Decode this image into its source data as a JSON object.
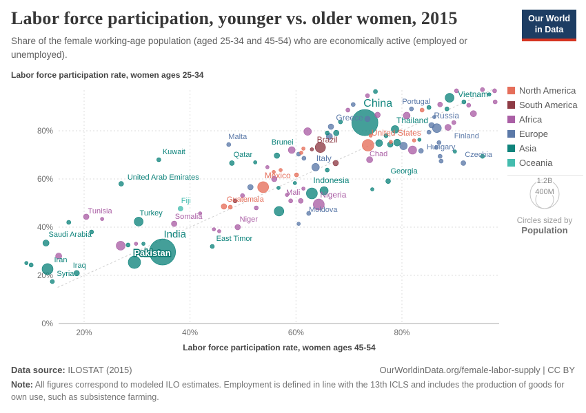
{
  "header": {
    "title": "Labor force participation, younger vs. older women, 2015",
    "subtitle": "Share of the female working-age population (aged 25-34 and 45-54) who are economically active (employed or unemployed).",
    "logo": {
      "line1": "Our World",
      "line2": "in Data"
    }
  },
  "chart_data": {
    "type": "scatter",
    "title": "Labor force participation, younger vs. older women, 2015",
    "xlabel": "Labor force participation rate, women ages 45-54",
    "ylabel": "Labor force participation rate, women ages 25-34",
    "xlim": [
      15,
      98
    ],
    "ylim": [
      0,
      97
    ],
    "x_ticks": [
      20,
      40,
      60,
      80
    ],
    "y_ticks": [
      0,
      20,
      40,
      60,
      80
    ],
    "tick_suffix": "%",
    "grid": true,
    "diagonal_line": true,
    "legend_position": "right",
    "continent_colors": {
      "North America": "#e56e5a",
      "South America": "#8e3b45",
      "Africa": "#aa5fa5",
      "Europe": "#5b79a8",
      "Asia": "#0f847c",
      "Oceania": "#44bcae"
    },
    "legend": [
      "North America",
      "South America",
      "Africa",
      "Europe",
      "Asia",
      "Oceania"
    ],
    "size_legend": {
      "outer_label": "1.2B",
      "inner_label": "400M",
      "caption": "Circles sized by",
      "caption_bold": "Population"
    },
    "points": [
      {
        "n": "India",
        "x": 34.8,
        "y": 29.7,
        "r": 19,
        "c": "Asia",
        "lx": 18,
        "ly": -21,
        "ls": 15
      },
      {
        "n": "Pakistan",
        "x": 29.5,
        "y": 25.4,
        "r": 9,
        "c": "Asia",
        "lx": 26,
        "ly": -9,
        "ls": 13,
        "halo": true
      },
      {
        "n": "China",
        "x": 73,
        "y": 83.4,
        "r": 19,
        "c": "Asia",
        "lx": 19,
        "ly": -23,
        "ls": 16
      },
      {
        "n": "United States",
        "x": 73.6,
        "y": 74,
        "r": 8.5,
        "c": "North America",
        "lx": 41,
        "ly": -14,
        "ls": 12
      },
      {
        "n": "Brazil",
        "x": 64.6,
        "y": 73.1,
        "r": 7.5,
        "c": "South America",
        "lx": 10,
        "ly": -7,
        "ls": 12
      },
      {
        "n": "Mexico",
        "x": 53.8,
        "y": 56.6,
        "r": 8,
        "c": "North America",
        "lx": 21,
        "ly": -13,
        "ls": 12
      },
      {
        "n": "Indonesia",
        "x": 63,
        "y": 54,
        "r": 8,
        "c": "Asia",
        "lx": 28,
        "ly": -15,
        "ls": 12
      },
      {
        "n": "Nigeria",
        "x": 64.3,
        "y": 49.4,
        "r": 8,
        "c": "Africa",
        "lx": 21,
        "ly": -10,
        "ls": 12
      },
      {
        "n": "Iran",
        "x": 13.1,
        "y": 22.6,
        "r": 8,
        "c": "Asia",
        "lx": 19,
        "ly": -10,
        "ls": 11
      },
      {
        "n": "Turkey",
        "x": 30.3,
        "y": 42.3,
        "r": 6.5,
        "c": "Asia",
        "lx": 18,
        "ly": -9,
        "ls": 11
      },
      {
        "n": "Vietnam",
        "x": 89,
        "y": 93.7,
        "r": 6.5,
        "c": "Asia",
        "lx": 34,
        "ly": -1,
        "ls": 12
      },
      {
        "n": "Russia",
        "x": 86.6,
        "y": 81.1,
        "r": 6.5,
        "c": "Europe",
        "lx": 14,
        "ly": -14,
        "ls": 12
      },
      {
        "n": "Thailand",
        "x": 78.7,
        "y": 80.6,
        "r": 5.5,
        "c": "Asia",
        "lx": 25,
        "ly": -9,
        "ls": 12
      },
      {
        "n": "Italy",
        "x": 63.7,
        "y": 64.9,
        "r": 5.5,
        "c": "Europe",
        "lx": 12,
        "ly": -9,
        "ls": 12
      },
      {
        "n": "Saudi Arabia",
        "x": 12.8,
        "y": 33.4,
        "r": 4.5,
        "c": "Asia",
        "lx": 35,
        "ly": -9,
        "ls": 11
      },
      {
        "n": "Chad",
        "x": 73.9,
        "y": 68,
        "r": 4.5,
        "c": "Africa",
        "lx": 13,
        "ly": -5,
        "ls": 11
      },
      {
        "n": "Tunisia",
        "x": 20.4,
        "y": 44.3,
        "r": 4,
        "c": "Africa",
        "lx": 20,
        "ly": -5,
        "ls": 11
      },
      {
        "n": "Somalia",
        "x": 37,
        "y": 41.4,
        "r": 4,
        "c": "Africa",
        "lx": 21,
        "ly": -7,
        "ls": 11
      },
      {
        "n": "Iraq",
        "x": 18.6,
        "y": 20.9,
        "r": 4,
        "c": "Asia",
        "lx": 4,
        "ly": -8,
        "ls": 11
      },
      {
        "n": "Guatemala",
        "x": 46.4,
        "y": 48.6,
        "r": 4,
        "c": "North America",
        "lx": 31,
        "ly": -7,
        "ls": 11
      },
      {
        "n": "Niger",
        "x": 49,
        "y": 40,
        "r": 4,
        "c": "Africa",
        "lx": 16,
        "ly": -8,
        "ls": 11
      },
      {
        "n": "Greece",
        "x": 66.6,
        "y": 81.7,
        "r": 4,
        "c": "Europe",
        "lx": 27,
        "ly": -9,
        "ls": 12
      },
      {
        "n": "Brunei",
        "x": 56.4,
        "y": 69.7,
        "r": 4,
        "c": "Asia",
        "lx": 8,
        "ly": -16,
        "ls": 11
      },
      {
        "n": "Mali",
        "x": 60.9,
        "y": 50.9,
        "r": 3.5,
        "c": "Africa",
        "lx": -11,
        "ly": -9,
        "ls": 11
      },
      {
        "n": "Qatar",
        "x": 47.9,
        "y": 66.6,
        "r": 3.5,
        "c": "Asia",
        "lx": 16,
        "ly": -9,
        "ls": 11
      },
      {
        "n": "United Arab Emirates",
        "x": 27,
        "y": 58,
        "r": 3.5,
        "c": "Asia",
        "lx": 61,
        "ly": -6,
        "ls": 11
      },
      {
        "n": "Fiji",
        "x": 38.2,
        "y": 47.7,
        "r": 3.5,
        "c": "Oceania",
        "lx": 8,
        "ly": -8,
        "ls": 11
      },
      {
        "n": "Georgia",
        "x": 77.4,
        "y": 59.1,
        "r": 3.5,
        "c": "Asia",
        "lx": 23,
        "ly": -11,
        "ls": 11
      },
      {
        "n": "Hungary",
        "x": 83.6,
        "y": 71.7,
        "r": 3.5,
        "c": "Europe",
        "lx": 29,
        "ly": -2,
        "ls": 11
      },
      {
        "n": "Czechia",
        "x": 91.6,
        "y": 66.6,
        "r": 3.5,
        "c": "Europe",
        "lx": 22,
        "ly": -9,
        "ls": 11
      },
      {
        "n": "Syria",
        "x": 14,
        "y": 17.4,
        "r": 3,
        "c": "Asia",
        "lx": 19,
        "ly": -8,
        "ls": 11
      },
      {
        "n": "Kuwait",
        "x": 34.1,
        "y": 68,
        "r": 3,
        "c": "Asia",
        "lx": 22,
        "ly": -8,
        "ls": 11
      },
      {
        "n": "Malta",
        "x": 47.3,
        "y": 74.3,
        "r": 3,
        "c": "Europe",
        "lx": 13,
        "ly": -8,
        "ls": 11
      },
      {
        "n": "East Timor",
        "x": 44.2,
        "y": 32,
        "r": 3,
        "c": "Asia",
        "lx": 32,
        "ly": -8,
        "ls": 11
      },
      {
        "n": "Moldova",
        "x": 62.4,
        "y": 45.7,
        "r": 3,
        "c": "Europe",
        "lx": 21,
        "ly": -2,
        "ls": 11
      },
      {
        "n": "Portugal",
        "x": 81.8,
        "y": 89.1,
        "r": 3,
        "c": "Europe",
        "lx": 7,
        "ly": -7,
        "ls": 11
      },
      {
        "n": "Finland",
        "x": 87,
        "y": 75.1,
        "r": 3,
        "c": "Europe",
        "lx": 40,
        "ly": -6,
        "ls": 11
      },
      {
        "x": 9.1,
        "y": 25.1,
        "r": 2.5,
        "c": "Asia"
      },
      {
        "x": 10,
        "y": 24.3,
        "r": 3,
        "c": "Asia"
      },
      {
        "x": 15.2,
        "y": 28,
        "r": 4.5,
        "c": "Africa"
      },
      {
        "x": 17.1,
        "y": 42,
        "r": 3,
        "c": "Asia"
      },
      {
        "x": 21.4,
        "y": 38,
        "r": 3,
        "c": "Asia"
      },
      {
        "x": 23.4,
        "y": 43.4,
        "r": 2.5,
        "c": "Africa"
      },
      {
        "x": 26.9,
        "y": 32.3,
        "r": 6.5,
        "c": "Africa"
      },
      {
        "x": 28.3,
        "y": 32.6,
        "r": 3,
        "c": "Asia"
      },
      {
        "x": 29.8,
        "y": 33.1,
        "r": 2.5,
        "c": "Africa"
      },
      {
        "x": 31.2,
        "y": 33.1,
        "r": 2.5,
        "c": "Asia"
      },
      {
        "x": 41.9,
        "y": 45.7,
        "r": 2.5,
        "c": "Africa"
      },
      {
        "x": 44.5,
        "y": 39.1,
        "r": 2.5,
        "c": "Africa"
      },
      {
        "x": 45.5,
        "y": 38.3,
        "r": 2.5,
        "c": "Africa"
      },
      {
        "x": 51.4,
        "y": 56.6,
        "r": 4,
        "c": "Europe"
      },
      {
        "x": 49.9,
        "y": 53.1,
        "r": 3,
        "c": "Africa"
      },
      {
        "x": 48.5,
        "y": 50.9,
        "r": 3,
        "c": "South America"
      },
      {
        "x": 47.6,
        "y": 48.3,
        "r": 3,
        "c": "North America"
      },
      {
        "x": 55.9,
        "y": 60,
        "r": 4,
        "c": "Africa"
      },
      {
        "x": 56.7,
        "y": 56.3,
        "r": 2.5,
        "c": "Asia"
      },
      {
        "x": 58.3,
        "y": 53.4,
        "r": 2.5,
        "c": "Africa"
      },
      {
        "x": 59,
        "y": 50.9,
        "r": 3,
        "c": "Africa"
      },
      {
        "x": 57.1,
        "y": 63.7,
        "r": 2.5,
        "c": "North America"
      },
      {
        "x": 59.8,
        "y": 58.3,
        "r": 2.5,
        "c": "Asia"
      },
      {
        "x": 61.4,
        "y": 56,
        "r": 2.5,
        "c": "Africa"
      },
      {
        "x": 65.3,
        "y": 55.1,
        "r": 6,
        "c": "Asia"
      },
      {
        "x": 56.8,
        "y": 46.6,
        "r": 7,
        "c": "Asia"
      },
      {
        "x": 60.5,
        "y": 41.4,
        "r": 2.5,
        "c": "Europe"
      },
      {
        "x": 74.4,
        "y": 55.7,
        "r": 2.5,
        "c": "Asia"
      },
      {
        "x": 52.5,
        "y": 48,
        "r": 3,
        "c": "Africa"
      },
      {
        "x": 52.3,
        "y": 66.9,
        "r": 2.5,
        "c": "Asia"
      },
      {
        "x": 54.6,
        "y": 64.9,
        "r": 2.5,
        "c": "Africa"
      },
      {
        "x": 55.8,
        "y": 62.9,
        "r": 2.5,
        "c": "North America"
      },
      {
        "x": 59.2,
        "y": 72,
        "r": 5,
        "c": "Africa"
      },
      {
        "x": 60.5,
        "y": 70.3,
        "r": 3,
        "c": "Europe"
      },
      {
        "x": 61,
        "y": 70.9,
        "r": 2.5,
        "c": "North America"
      },
      {
        "x": 61.5,
        "y": 68.6,
        "r": 3,
        "c": "Europe"
      },
      {
        "x": 63,
        "y": 72.3,
        "r": 2.5,
        "c": "South America"
      },
      {
        "x": 61.4,
        "y": 72.6,
        "r": 2.5,
        "c": "North America"
      },
      {
        "x": 62.2,
        "y": 79.7,
        "r": 5.5,
        "c": "Africa"
      },
      {
        "x": 65.9,
        "y": 79.1,
        "r": 3,
        "c": "Asia"
      },
      {
        "x": 66.3,
        "y": 77.7,
        "r": 4.5,
        "c": "Europe"
      },
      {
        "x": 67.6,
        "y": 79.1,
        "r": 4,
        "c": "Asia"
      },
      {
        "x": 67.5,
        "y": 66.6,
        "r": 4,
        "c": "South America"
      },
      {
        "x": 65.9,
        "y": 63.7,
        "r": 3,
        "c": "Asia"
      },
      {
        "x": 60.1,
        "y": 61.7,
        "r": 3,
        "c": "North America"
      },
      {
        "x": 68.4,
        "y": 83.7,
        "r": 3,
        "c": "Asia"
      },
      {
        "x": 69.8,
        "y": 88.6,
        "r": 3,
        "c": "Africa"
      },
      {
        "x": 70.8,
        "y": 90.9,
        "r": 3,
        "c": "Europe"
      },
      {
        "x": 73.5,
        "y": 84.9,
        "r": 4,
        "c": "Europe"
      },
      {
        "x": 75.4,
        "y": 86.6,
        "r": 4,
        "c": "Africa"
      },
      {
        "x": 74.1,
        "y": 78,
        "r": 2.5,
        "c": "North America"
      },
      {
        "x": 75.7,
        "y": 74.9,
        "r": 5,
        "c": "Asia"
      },
      {
        "x": 77,
        "y": 78,
        "r": 3,
        "c": "Asia"
      },
      {
        "x": 73.5,
        "y": 94.6,
        "r": 3,
        "c": "Africa"
      },
      {
        "x": 75,
        "y": 96.3,
        "r": 3,
        "c": "Asia"
      },
      {
        "x": 77.9,
        "y": 75.4,
        "r": 2.5,
        "c": "North America"
      },
      {
        "x": 77.8,
        "y": 74.3,
        "r": 4,
        "c": "Asia"
      },
      {
        "x": 79.1,
        "y": 75.1,
        "r": 5,
        "c": "Asia"
      },
      {
        "x": 80.3,
        "y": 73.7,
        "r": 5.5,
        "c": "Europe"
      },
      {
        "x": 82,
        "y": 72,
        "r": 6,
        "c": "Africa"
      },
      {
        "x": 82.3,
        "y": 76,
        "r": 2.5,
        "c": "North America"
      },
      {
        "x": 83.3,
        "y": 76.3,
        "r": 2.5,
        "c": "Asia"
      },
      {
        "x": 86.5,
        "y": 73.1,
        "r": 3,
        "c": "Europe"
      },
      {
        "x": 87.2,
        "y": 69.4,
        "r": 3,
        "c": "Europe"
      },
      {
        "x": 87.4,
        "y": 67.4,
        "r": 3,
        "c": "Europe"
      },
      {
        "x": 95.2,
        "y": 69.4,
        "r": 3,
        "c": "Asia"
      },
      {
        "x": 90,
        "y": 71.4,
        "r": 2.5,
        "c": "Asia"
      },
      {
        "x": 85.6,
        "y": 82.3,
        "r": 4,
        "c": "Europe"
      },
      {
        "x": 85.1,
        "y": 79.4,
        "r": 3,
        "c": "Europe"
      },
      {
        "x": 88.7,
        "y": 81.4,
        "r": 4.5,
        "c": "Africa"
      },
      {
        "x": 89.8,
        "y": 83.4,
        "r": 3,
        "c": "Africa"
      },
      {
        "x": 83.8,
        "y": 88.6,
        "r": 3,
        "c": "North America"
      },
      {
        "x": 85.1,
        "y": 89.7,
        "r": 3,
        "c": "Asia"
      },
      {
        "x": 87.2,
        "y": 90.9,
        "r": 3.5,
        "c": "Africa"
      },
      {
        "x": 88.5,
        "y": 89.1,
        "r": 3,
        "c": "Asia"
      },
      {
        "x": 86.1,
        "y": 85.7,
        "r": 2.5,
        "c": "Europe"
      },
      {
        "x": 80.9,
        "y": 86.3,
        "r": 5,
        "c": "Africa"
      },
      {
        "x": 91.7,
        "y": 92,
        "r": 3,
        "c": "Asia"
      },
      {
        "x": 92.6,
        "y": 90.6,
        "r": 3,
        "c": "Africa"
      },
      {
        "x": 93.5,
        "y": 87.1,
        "r": 4.5,
        "c": "Africa"
      },
      {
        "x": 97.6,
        "y": 92,
        "r": 3,
        "c": "Africa"
      },
      {
        "x": 96.5,
        "y": 95.1,
        "r": 2.5,
        "c": "Asia"
      },
      {
        "x": 95.2,
        "y": 97.1,
        "r": 3,
        "c": "Africa"
      },
      {
        "x": 97.5,
        "y": 96.6,
        "r": 3,
        "c": "Africa"
      },
      {
        "x": 90.3,
        "y": 96.6,
        "r": 3,
        "c": "Africa"
      }
    ]
  },
  "footer": {
    "source_label": "Data source:",
    "source_value": " ILOSTAT (2015)",
    "link": "OurWorldinData.org/female-labor-supply | CC BY",
    "note_label": "Note:",
    "note_value": " All figures correspond to modeled ILO estimates. Employment is defined in line with the 13th ICLS and includes the production of goods for own use, such as subsistence farming."
  }
}
